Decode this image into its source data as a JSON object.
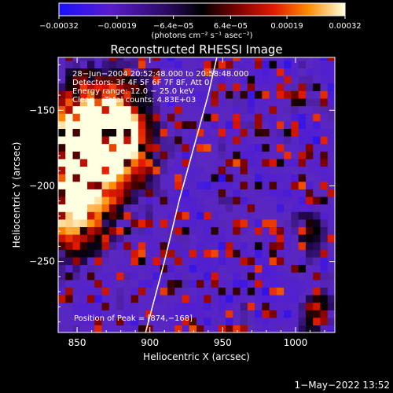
{
  "chart_data": {
    "type": "heatmap",
    "title": "Reconstructed RHESSI Image",
    "xlabel": "Heliocentric X (arcsec)",
    "ylabel": "Heliocentric Y (arcsec)",
    "x_range": [
      837,
      1027
    ],
    "y_range": [
      -297,
      -115
    ],
    "x_ticks": [
      850,
      900,
      950,
      1000
    ],
    "x_tick_labels": [
      "850",
      "900",
      "950",
      "1000"
    ],
    "y_ticks": [
      -150,
      -200,
      -250
    ],
    "y_tick_labels": [
      "−150",
      "−200",
      "−250"
    ],
    "colorbar": {
      "range": [
        -0.00032,
        0.00032
      ],
      "ticks": [
        -0.00032,
        -0.00019,
        -6.4e-05,
        6.4e-05,
        0.00019,
        0.00032
      ],
      "tick_labels": [
        "−0.00032",
        "−0.00019",
        "−6.4e−05",
        "6.4e−05",
        "0.00019",
        "0.00032"
      ],
      "unit_label": "(photons cm⁻² s⁻¹ asec⁻²)"
    },
    "annotations": [
      "28−Jun−2004 20:52:48.000 to 20:58:48.000",
      "Detectors: 3F 4F 5F 6F 7F 8F, Att 0",
      "Energy range: 12.0 − 25.0 keV",
      "Clean    Total counts: 4.83E+03"
    ],
    "peak_label": "Position of Peak = [874,−168]",
    "peak": [
      874,
      -168
    ],
    "limb_points": [
      [
        897,
        -297
      ],
      [
        910,
        -250
      ],
      [
        920,
        -210
      ],
      [
        930,
        -175
      ],
      [
        940,
        -140
      ],
      [
        946,
        -115
      ]
    ],
    "hot_regions": [
      {
        "x": 860,
        "y": -175,
        "w": 1.0,
        "sx": 32,
        "sy": 40
      },
      {
        "x": 875,
        "y": -165,
        "w": 0.9,
        "sx": 18,
        "sy": 18
      },
      {
        "x": 845,
        "y": -205,
        "w": 0.7,
        "sx": 20,
        "sy": 35
      },
      {
        "x": 1015,
        "y": -282,
        "w": 0.45,
        "sx": 10,
        "sy": 12
      },
      {
        "x": 1010,
        "y": -230,
        "w": 0.25,
        "sx": 12,
        "sy": 18
      }
    ],
    "grid": false
  },
  "footer": {
    "timestamp": "1−May−2022 13:52"
  }
}
